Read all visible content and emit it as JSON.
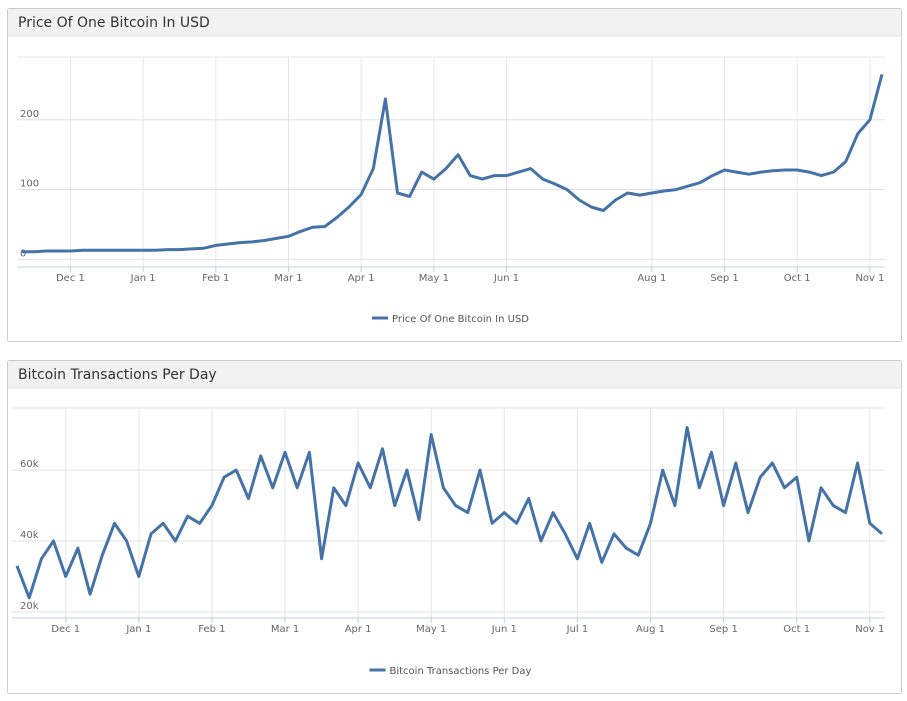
{
  "chart_data": [
    {
      "type": "line",
      "title": "Price Of One Bitcoin In USD",
      "categories": [
        null,
        null,
        null,
        null,
        "Dec 1",
        null,
        null,
        null,
        null,
        null,
        "Jan 1",
        null,
        null,
        null,
        null,
        null,
        "Feb 1",
        null,
        null,
        null,
        null,
        null,
        "Mar 1",
        null,
        null,
        null,
        null,
        null,
        "Apr 1",
        null,
        null,
        null,
        null,
        null,
        "May 1",
        null,
        null,
        null,
        null,
        null,
        "Jun 1",
        null,
        null,
        null,
        null,
        null,
        null,
        null,
        null,
        null,
        null,
        null,
        "Aug 1",
        null,
        null,
        null,
        null,
        null,
        "Sep 1",
        null,
        null,
        null,
        null,
        null,
        "Oct 1",
        null,
        null,
        null,
        null,
        null,
        "Nov 1",
        null
      ],
      "series": [
        {
          "name": "Price Of One Bitcoin In USD",
          "color": "#4572a7",
          "values": [
            11,
            11,
            12,
            12,
            12,
            13,
            13,
            13,
            13,
            13,
            13,
            13,
            14,
            14,
            15,
            16,
            20,
            22,
            24,
            25,
            27,
            30,
            33,
            40,
            46,
            47,
            60,
            75,
            93,
            130,
            230,
            95,
            90,
            125,
            115,
            130,
            150,
            120,
            115,
            120,
            120,
            125,
            130,
            115,
            108,
            100,
            85,
            75,
            70,
            85,
            95,
            92,
            95,
            98,
            100,
            105,
            110,
            120,
            128,
            125,
            122,
            125,
            127,
            128,
            128,
            125,
            120,
            125,
            140,
            180,
            200,
            265
          ]
        }
      ],
      "ylim": [
        -11,
        290
      ],
      "yticks": [
        0,
        100,
        200
      ],
      "grid": true
    },
    {
      "type": "line",
      "title": "Bitcoin Transactions Per Day",
      "categories": [
        null,
        null,
        null,
        null,
        "Dec 1",
        null,
        null,
        null,
        null,
        null,
        "Jan 1",
        null,
        null,
        null,
        null,
        null,
        "Feb 1",
        null,
        null,
        null,
        null,
        null,
        "Mar 1",
        null,
        null,
        null,
        null,
        null,
        "Apr 1",
        null,
        null,
        null,
        null,
        null,
        "May 1",
        null,
        null,
        null,
        null,
        null,
        "Jun 1",
        null,
        null,
        null,
        null,
        null,
        "Jul 1",
        null,
        null,
        null,
        null,
        null,
        "Aug 1",
        null,
        null,
        null,
        null,
        null,
        "Sep 1",
        null,
        null,
        null,
        null,
        null,
        "Oct 1",
        null,
        null,
        null,
        null,
        null,
        "Nov 1",
        null
      ],
      "series": [
        {
          "name": "Bitcoin Transactions Per Day",
          "color": "#4572a7",
          "values": [
            33000,
            24000,
            35000,
            40000,
            30000,
            38000,
            25000,
            36000,
            45000,
            40000,
            30000,
            42000,
            45000,
            40000,
            47000,
            45000,
            50000,
            58000,
            60000,
            52000,
            64000,
            55000,
            65000,
            55000,
            65000,
            35000,
            55000,
            50000,
            62000,
            55000,
            66000,
            50000,
            60000,
            46000,
            70000,
            55000,
            50000,
            48000,
            60000,
            45000,
            48000,
            45000,
            52000,
            40000,
            48000,
            42000,
            35000,
            45000,
            34000,
            42000,
            38000,
            36000,
            45000,
            60000,
            50000,
            72000,
            55000,
            65000,
            50000,
            62000,
            48000,
            58000,
            62000,
            55000,
            58000,
            40000,
            55000,
            50000,
            48000,
            62000,
            45000,
            42000
          ]
        }
      ],
      "ylim": [
        18300,
        77500
      ],
      "yticks": [
        {
          "value": 20000,
          "label": "20k"
        },
        {
          "value": 40000,
          "label": "40k"
        },
        {
          "value": 60000,
          "label": "60k"
        }
      ],
      "grid": true
    }
  ]
}
